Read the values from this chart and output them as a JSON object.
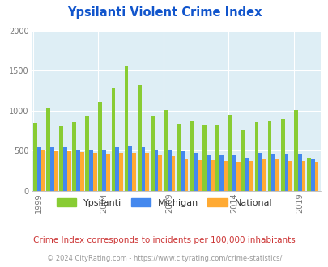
{
  "title": "Ypsilanti Violent Crime Index",
  "years": [
    1999,
    2000,
    2001,
    2002,
    2003,
    2004,
    2005,
    2006,
    2007,
    2008,
    2009,
    2010,
    2011,
    2012,
    2013,
    2014,
    2015,
    2016,
    2017,
    2018,
    2019,
    2020
  ],
  "ypsilanti": [
    850,
    1040,
    810,
    860,
    940,
    1110,
    1280,
    1550,
    1320,
    940,
    1010,
    840,
    870,
    830,
    830,
    950,
    760,
    860,
    870,
    900,
    1010,
    410
  ],
  "michigan": [
    540,
    540,
    540,
    505,
    505,
    500,
    550,
    560,
    545,
    500,
    505,
    490,
    470,
    450,
    445,
    445,
    415,
    470,
    460,
    460,
    460,
    390
  ],
  "national": [
    510,
    490,
    490,
    480,
    470,
    465,
    470,
    475,
    470,
    455,
    430,
    400,
    385,
    380,
    370,
    365,
    375,
    390,
    390,
    370,
    370,
    360
  ],
  "ypsilanti_color": "#88cc33",
  "michigan_color": "#4488ee",
  "national_color": "#ffaa33",
  "background_color": "#deeef5",
  "ylim": [
    0,
    2000
  ],
  "yticks": [
    0,
    500,
    1000,
    1500,
    2000
  ],
  "xlabel_ticks": [
    1999,
    2004,
    2009,
    2014,
    2019
  ],
  "title_color": "#1155cc",
  "subtitle": "Crime Index corresponds to incidents per 100,000 inhabitants",
  "footer": "© 2024 CityRating.com - https://www.cityrating.com/crime-statistics/",
  "subtitle_color": "#cc3333",
  "footer_color": "#999999"
}
